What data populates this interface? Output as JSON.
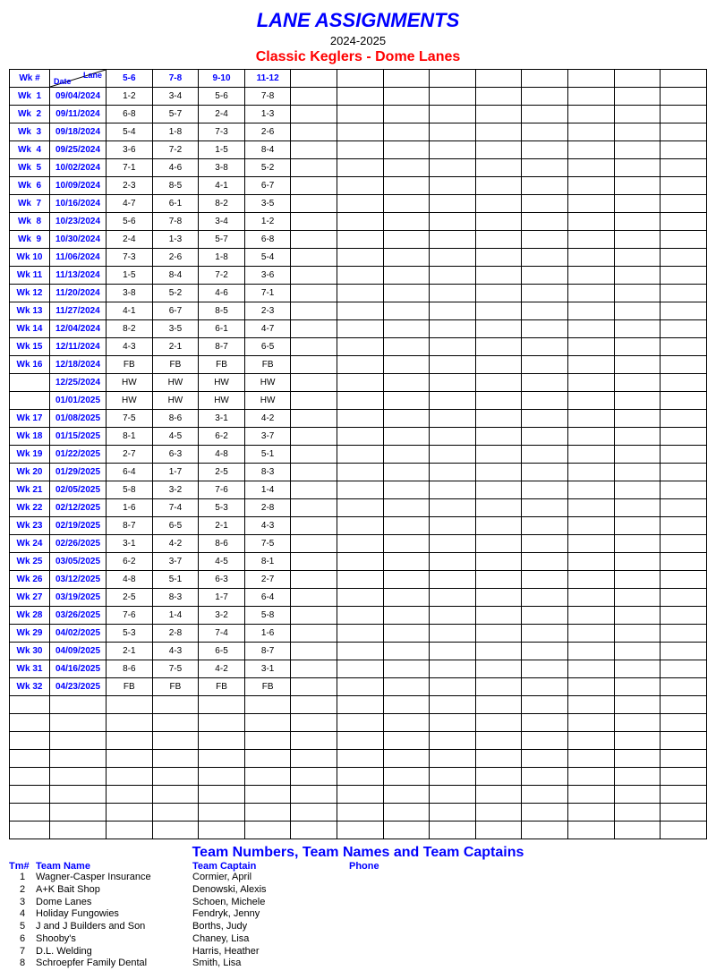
{
  "header": {
    "title": "LANE ASSIGNMENTS",
    "season": "2024-2025",
    "league": "Classic Keglers - Dome Lanes"
  },
  "laneTable": {
    "wkHeader": "Wk #",
    "dateLabel": "Date",
    "laneLabel": "Lane",
    "laneHeaders": [
      "5-6",
      "7-8",
      "9-10",
      "11-12"
    ],
    "numExtraCols": 9,
    "numEmptyRows": 8,
    "rows": [
      {
        "wk": "Wk  1",
        "date": "09/04/2024",
        "cells": [
          "1-2",
          "3-4",
          "5-6",
          "7-8"
        ]
      },
      {
        "wk": "Wk  2",
        "date": "09/11/2024",
        "cells": [
          "6-8",
          "5-7",
          "2-4",
          "1-3"
        ]
      },
      {
        "wk": "Wk  3",
        "date": "09/18/2024",
        "cells": [
          "5-4",
          "1-8",
          "7-3",
          "2-6"
        ]
      },
      {
        "wk": "Wk  4",
        "date": "09/25/2024",
        "cells": [
          "3-6",
          "7-2",
          "1-5",
          "8-4"
        ]
      },
      {
        "wk": "Wk  5",
        "date": "10/02/2024",
        "cells": [
          "7-1",
          "4-6",
          "3-8",
          "5-2"
        ]
      },
      {
        "wk": "Wk  6",
        "date": "10/09/2024",
        "cells": [
          "2-3",
          "8-5",
          "4-1",
          "6-7"
        ]
      },
      {
        "wk": "Wk  7",
        "date": "10/16/2024",
        "cells": [
          "4-7",
          "6-1",
          "8-2",
          "3-5"
        ]
      },
      {
        "wk": "Wk  8",
        "date": "10/23/2024",
        "cells": [
          "5-6",
          "7-8",
          "3-4",
          "1-2"
        ]
      },
      {
        "wk": "Wk  9",
        "date": "10/30/2024",
        "cells": [
          "2-4",
          "1-3",
          "5-7",
          "6-8"
        ]
      },
      {
        "wk": "Wk 10",
        "date": "11/06/2024",
        "cells": [
          "7-3",
          "2-6",
          "1-8",
          "5-4"
        ]
      },
      {
        "wk": "Wk 11",
        "date": "11/13/2024",
        "cells": [
          "1-5",
          "8-4",
          "7-2",
          "3-6"
        ]
      },
      {
        "wk": "Wk 12",
        "date": "11/20/2024",
        "cells": [
          "3-8",
          "5-2",
          "4-6",
          "7-1"
        ]
      },
      {
        "wk": "Wk 13",
        "date": "11/27/2024",
        "cells": [
          "4-1",
          "6-7",
          "8-5",
          "2-3"
        ]
      },
      {
        "wk": "Wk 14",
        "date": "12/04/2024",
        "cells": [
          "8-2",
          "3-5",
          "6-1",
          "4-7"
        ]
      },
      {
        "wk": "Wk 15",
        "date": "12/11/2024",
        "cells": [
          "4-3",
          "2-1",
          "8-7",
          "6-5"
        ]
      },
      {
        "wk": "Wk 16",
        "date": "12/18/2024",
        "cells": [
          "FB",
          "FB",
          "FB",
          "FB"
        ]
      },
      {
        "wk": "",
        "date": "12/25/2024",
        "cells": [
          "HW",
          "HW",
          "HW",
          "HW"
        ]
      },
      {
        "wk": "",
        "date": "01/01/2025",
        "cells": [
          "HW",
          "HW",
          "HW",
          "HW"
        ]
      },
      {
        "wk": "Wk 17",
        "date": "01/08/2025",
        "cells": [
          "7-5",
          "8-6",
          "3-1",
          "4-2"
        ]
      },
      {
        "wk": "Wk 18",
        "date": "01/15/2025",
        "cells": [
          "8-1",
          "4-5",
          "6-2",
          "3-7"
        ]
      },
      {
        "wk": "Wk 19",
        "date": "01/22/2025",
        "cells": [
          "2-7",
          "6-3",
          "4-8",
          "5-1"
        ]
      },
      {
        "wk": "Wk 20",
        "date": "01/29/2025",
        "cells": [
          "6-4",
          "1-7",
          "2-5",
          "8-3"
        ]
      },
      {
        "wk": "Wk 21",
        "date": "02/05/2025",
        "cells": [
          "5-8",
          "3-2",
          "7-6",
          "1-4"
        ]
      },
      {
        "wk": "Wk 22",
        "date": "02/12/2025",
        "cells": [
          "1-6",
          "7-4",
          "5-3",
          "2-8"
        ]
      },
      {
        "wk": "Wk 23",
        "date": "02/19/2025",
        "cells": [
          "8-7",
          "6-5",
          "2-1",
          "4-3"
        ]
      },
      {
        "wk": "Wk 24",
        "date": "02/26/2025",
        "cells": [
          "3-1",
          "4-2",
          "8-6",
          "7-5"
        ]
      },
      {
        "wk": "Wk 25",
        "date": "03/05/2025",
        "cells": [
          "6-2",
          "3-7",
          "4-5",
          "8-1"
        ]
      },
      {
        "wk": "Wk 26",
        "date": "03/12/2025",
        "cells": [
          "4-8",
          "5-1",
          "6-3",
          "2-7"
        ]
      },
      {
        "wk": "Wk 27",
        "date": "03/19/2025",
        "cells": [
          "2-5",
          "8-3",
          "1-7",
          "6-4"
        ]
      },
      {
        "wk": "Wk 28",
        "date": "03/26/2025",
        "cells": [
          "7-6",
          "1-4",
          "3-2",
          "5-8"
        ]
      },
      {
        "wk": "Wk 29",
        "date": "04/02/2025",
        "cells": [
          "5-3",
          "2-8",
          "7-4",
          "1-6"
        ]
      },
      {
        "wk": "Wk 30",
        "date": "04/09/2025",
        "cells": [
          "2-1",
          "4-3",
          "6-5",
          "8-7"
        ]
      },
      {
        "wk": "Wk 31",
        "date": "04/16/2025",
        "cells": [
          "8-6",
          "7-5",
          "4-2",
          "3-1"
        ]
      },
      {
        "wk": "Wk 32",
        "date": "04/23/2025",
        "cells": [
          "FB",
          "FB",
          "FB",
          "FB"
        ]
      }
    ]
  },
  "teamsSection": {
    "title": "Team Numbers, Team Names and Team Captains",
    "headers": {
      "num": "Tm#",
      "name": "Team Name",
      "captain": "Team Captain",
      "phone": "Phone"
    },
    "teams": [
      {
        "num": "1",
        "name": "Wagner-Casper Insurance",
        "captain": "Cormier, April"
      },
      {
        "num": "2",
        "name": "A+K Bait Shop",
        "captain": "Denowski, Alexis"
      },
      {
        "num": "3",
        "name": "Dome Lanes",
        "captain": "Schoen, Michele"
      },
      {
        "num": "4",
        "name": "Holiday Fungowies",
        "captain": "Fendryk, Jenny"
      },
      {
        "num": "5",
        "name": "J and J Builders and Son",
        "captain": "Borths, Judy"
      },
      {
        "num": "6",
        "name": "Shooby's",
        "captain": "Chaney, Lisa"
      },
      {
        "num": "7",
        "name": "D.L. Welding",
        "captain": "Harris, Heather"
      },
      {
        "num": "8",
        "name": "Schroepfer Family Dental",
        "captain": "Smith, Lisa"
      }
    ]
  }
}
